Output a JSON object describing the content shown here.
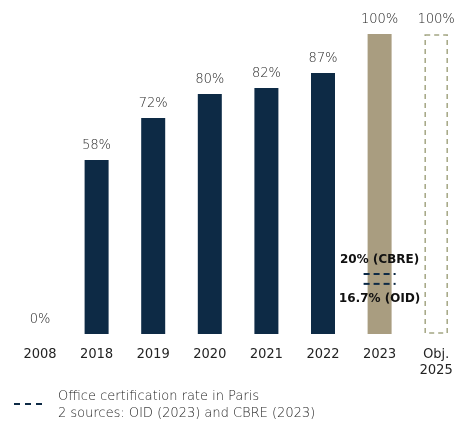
{
  "chart_data": {
    "type": "bar",
    "categories": [
      "2008",
      "2018",
      "2019",
      "2020",
      "2021",
      "2022",
      "2023",
      "Obj. 2025"
    ],
    "values": [
      0,
      58,
      72,
      80,
      82,
      87,
      100,
      100
    ],
    "value_labels": [
      "0%",
      "58%",
      "72%",
      "80%",
      "82%",
      "87%",
      "100%",
      "100%"
    ],
    "colors": [
      "#0d2a45",
      "#0d2a45",
      "#0d2a45",
      "#0d2a45",
      "#0d2a45",
      "#0d2a45",
      "#a99d80",
      "#a3a583"
    ],
    "dashed_outline": [
      false,
      false,
      false,
      false,
      false,
      false,
      false,
      true
    ],
    "reference_lines": [
      {
        "label": "20% (CBRE)",
        "value": 20,
        "category": 6
      },
      {
        "label": "16.7% (OID)",
        "value": 16.7,
        "category": 6
      }
    ],
    "legend": [
      "Office certification rate in Paris",
      "2 sources: OID (2023) and CBRE (2023)"
    ]
  }
}
